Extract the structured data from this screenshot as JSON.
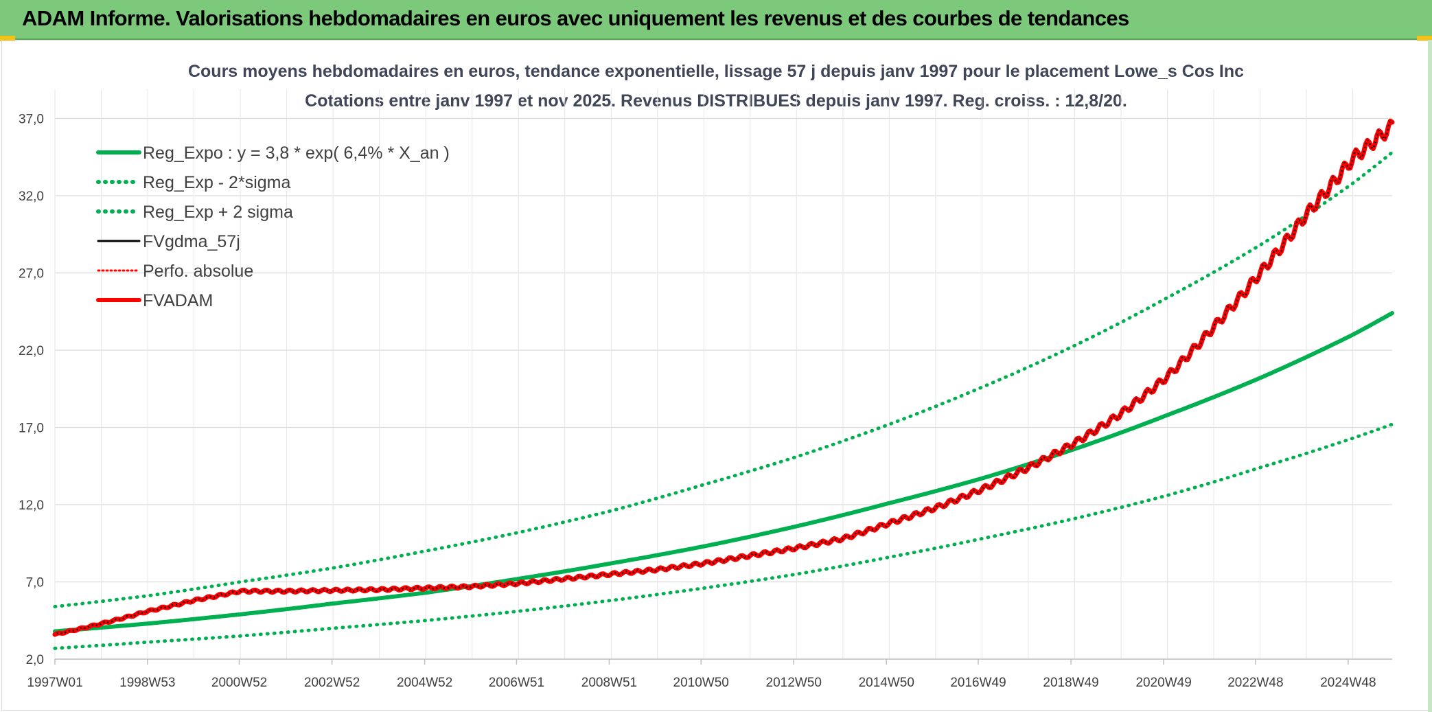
{
  "header": {
    "title": "ADAM Informe. Valorisations hebdomadaires en euros avec uniquement les revenus et des courbes de tendances"
  },
  "colors": {
    "banner": "#7dc97b",
    "reg_green": "#00b050",
    "red": "#ff0000",
    "black": "#000000",
    "grid": "#d9d9d9"
  },
  "chart_data": {
    "type": "line",
    "title": "Cours moyens hebdomadaires en euros, tendance exponentielle, lissage 57 j depuis janv 1997 pour le placement Lowe_s Cos Inc",
    "subtitle": "Cotations entre janv 1997 et nov 2025. Revenus DISTRIBUES depuis janv 1997. Reg. croiss. : 12,8/20.",
    "xlabel": "",
    "ylabel": "",
    "x_ticks": [
      "1997W01",
      "1998W53",
      "2000W52",
      "2002W52",
      "2004W52",
      "2006W51",
      "2008W51",
      "2010W50",
      "2012W50",
      "2014W50",
      "2016W49",
      "2018W49",
      "2020W49",
      "2022W48",
      "2024W48"
    ],
    "x_range_years": [
      1997.0,
      2025.85
    ],
    "y_ticks": [
      "2,0",
      "7,0",
      "12,0",
      "17,0",
      "22,0",
      "27,0",
      "32,0",
      "37,0"
    ],
    "ylim": [
      2,
      38
    ],
    "grid": true,
    "legend_position": "top-left",
    "series": [
      {
        "name": "Reg_Expo : y = 3,8 * exp( 6,4% *  X_an )",
        "style": "solid",
        "color": "#00b050",
        "x": [
          1997,
          1999,
          2001,
          2003,
          2005,
          2007,
          2009,
          2011,
          2013,
          2015,
          2017,
          2019,
          2021,
          2023,
          2025,
          2025.85
        ],
        "values": [
          3.8,
          4.3,
          4.9,
          5.6,
          6.3,
          7.2,
          8.2,
          9.3,
          10.6,
          12.1,
          13.7,
          15.6,
          17.8,
          20.2,
          23.0,
          24.4
        ]
      },
      {
        "name": "Reg_Exp - 2*sigma",
        "style": "dotted",
        "color": "#00b050",
        "x": [
          1997,
          1999,
          2001,
          2003,
          2005,
          2007,
          2009,
          2011,
          2013,
          2015,
          2017,
          2019,
          2021,
          2023,
          2025,
          2025.85
        ],
        "values": [
          2.7,
          3.1,
          3.5,
          4.0,
          4.5,
          5.1,
          5.8,
          6.6,
          7.5,
          8.6,
          9.8,
          11.1,
          12.6,
          14.4,
          16.3,
          17.2
        ]
      },
      {
        "name": "Reg_Exp + 2 sigma",
        "style": "dotted",
        "color": "#00b050",
        "x": [
          1997,
          1999,
          2001,
          2003,
          2005,
          2007,
          2009,
          2011,
          2013,
          2015,
          2017,
          2019,
          2021,
          2023,
          2025,
          2025.85
        ],
        "values": [
          5.4,
          6.1,
          7.0,
          7.9,
          9.0,
          10.2,
          11.6,
          13.3,
          15.1,
          17.2,
          19.6,
          22.3,
          25.4,
          28.8,
          32.8,
          34.8
        ]
      },
      {
        "name": "FVgdma_57j",
        "style": "solid",
        "color": "#000000",
        "x": [
          1997,
          1998,
          1999,
          2000,
          2001,
          2002,
          2003,
          2004,
          2005,
          2006,
          2007,
          2008,
          2009,
          2010,
          2011,
          2012,
          2013,
          2014,
          2015,
          2016,
          2017,
          2018,
          2019,
          2020,
          2021,
          2022,
          2023,
          2024,
          2025,
          2025.85
        ],
        "values": [
          3.6,
          4.3,
          5.1,
          5.8,
          6.4,
          6.4,
          6.45,
          6.5,
          6.6,
          6.7,
          6.9,
          7.2,
          7.5,
          7.8,
          8.2,
          8.7,
          9.2,
          9.8,
          10.8,
          11.8,
          13.0,
          14.4,
          16.0,
          17.9,
          20.3,
          23.5,
          27.0,
          30.8,
          34.4,
          36.5
        ]
      },
      {
        "name": "Perfo. absolue",
        "style": "dotted",
        "color": "#ff0000",
        "x": [
          1997,
          1998,
          1999,
          2000,
          2001,
          2002,
          2003,
          2004,
          2005,
          2006,
          2007,
          2008,
          2009,
          2010,
          2011,
          2012,
          2013,
          2014,
          2015,
          2016,
          2017,
          2018,
          2019,
          2020,
          2021,
          2022,
          2023,
          2024,
          2025,
          2025.85
        ],
        "values": [
          3.6,
          4.3,
          5.1,
          5.8,
          6.4,
          6.4,
          6.45,
          6.5,
          6.6,
          6.7,
          6.9,
          7.2,
          7.5,
          7.8,
          8.2,
          8.7,
          9.2,
          9.8,
          10.8,
          11.8,
          13.0,
          14.4,
          16.0,
          17.9,
          20.3,
          23.5,
          27.0,
          30.8,
          34.4,
          36.5
        ]
      },
      {
        "name": "FVADAM",
        "style": "solid",
        "color": "#ff0000",
        "x": [
          1997,
          1998,
          1999,
          2000,
          2001,
          2002,
          2003,
          2004,
          2005,
          2006,
          2007,
          2008,
          2009,
          2010,
          2011,
          2012,
          2013,
          2014,
          2015,
          2016,
          2017,
          2018,
          2019,
          2020,
          2021,
          2022,
          2023,
          2024,
          2025,
          2025.85
        ],
        "values": [
          3.6,
          4.3,
          5.1,
          5.8,
          6.4,
          6.4,
          6.45,
          6.5,
          6.6,
          6.7,
          6.9,
          7.2,
          7.5,
          7.8,
          8.2,
          8.7,
          9.2,
          9.8,
          10.8,
          11.8,
          13.0,
          14.4,
          16.0,
          17.9,
          20.3,
          23.5,
          27.0,
          30.8,
          34.4,
          36.5
        ]
      }
    ]
  }
}
